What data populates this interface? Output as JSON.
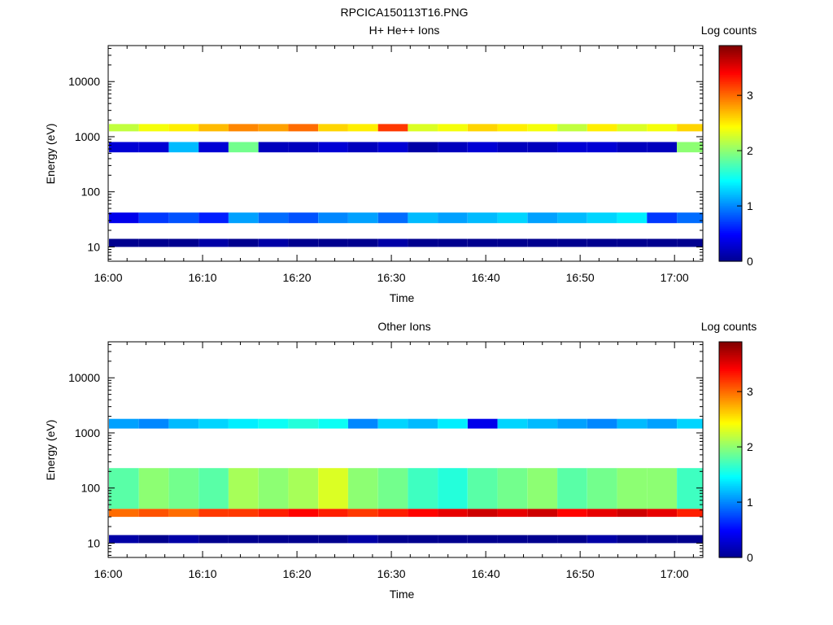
{
  "figure": {
    "title": "RPCICA150113T16.PNG"
  },
  "colors": {
    "colormap": [
      "#00008f",
      "#0000ff",
      "#0080ff",
      "#00ffff",
      "#80ff80",
      "#ffff00",
      "#ff8000",
      "#ff0000",
      "#800000"
    ]
  },
  "chart_data": [
    {
      "type": "heatmap",
      "title": "H+ He++ Ions",
      "xlabel": "Time",
      "ylabel": "Energy (eV)",
      "colorbar_label": "Log counts",
      "x_ticks": [
        "16:00",
        "16:10",
        "16:20",
        "16:30",
        "16:40",
        "16:50",
        "17:00"
      ],
      "y_ticks": [
        "10",
        "100",
        "1000",
        "10000"
      ],
      "colorbar_ticks": [
        "0",
        "1",
        "2",
        "3"
      ],
      "xlim_minutes": [
        0,
        63
      ],
      "ylim_eV": [
        5.5,
        45000
      ],
      "y_scale": "log",
      "zlim": [
        0,
        3.9
      ],
      "time_bins": [
        "16:01:40",
        "16:04:50",
        "16:08:00",
        "16:11:10",
        "16:14:20",
        "16:17:30",
        "16:20:40",
        "16:23:50",
        "16:27:00",
        "16:30:10",
        "16:33:20",
        "16:36:30",
        "16:39:40",
        "16:42:50",
        "16:46:00",
        "16:49:10",
        "16:52:20",
        "16:55:30",
        "16:58:40",
        "17:01:50"
      ],
      "bands": [
        {
          "energy_eV": [
            1250,
            1700
          ],
          "values": [
            2.2,
            2.4,
            2.5,
            2.7,
            2.9,
            2.8,
            3.0,
            2.6,
            2.5,
            3.2,
            2.3,
            2.4,
            2.6,
            2.5,
            2.4,
            2.2,
            2.5,
            2.3,
            2.4,
            2.6
          ]
        },
        {
          "energy_eV": [
            27,
            42
          ],
          "values": [
            0.4,
            0.7,
            0.8,
            0.6,
            1.1,
            0.9,
            0.8,
            1.0,
            1.1,
            0.9,
            1.2,
            1.1,
            1.2,
            1.3,
            1.1,
            1.2,
            1.3,
            1.4,
            0.7,
            0.9
          ]
        },
        {
          "energy_eV": [
            520,
            800
          ],
          "values": [
            0.3,
            0.3,
            1.2,
            0.3,
            1.9,
            0.2,
            0.2,
            0.3,
            0.2,
            0.3,
            0.1,
            0.2,
            0.3,
            0.2,
            0.2,
            0.3,
            0.3,
            0.2,
            0.2,
            2.0
          ]
        },
        {
          "energy_eV": [
            10,
            14
          ],
          "values": [
            0,
            0,
            0,
            0.1,
            0,
            0.1,
            0,
            0,
            0,
            0.1,
            0,
            0,
            0,
            0,
            0,
            0,
            0,
            0,
            0,
            0
          ]
        }
      ]
    },
    {
      "type": "heatmap",
      "title": "Other Ions",
      "xlabel": "Time",
      "ylabel": "Energy (eV)",
      "colorbar_label": "Log counts",
      "x_ticks": [
        "16:00",
        "16:10",
        "16:20",
        "16:30",
        "16:40",
        "16:50",
        "17:00"
      ],
      "y_ticks": [
        "10",
        "100",
        "1000",
        "10000"
      ],
      "colorbar_ticks": [
        "0",
        "1",
        "2",
        "3"
      ],
      "xlim_minutes": [
        0,
        63
      ],
      "ylim_eV": [
        5.5,
        45000
      ],
      "y_scale": "log",
      "zlim": [
        0,
        3.9
      ],
      "time_bins": [
        "16:01:40",
        "16:04:50",
        "16:08:00",
        "16:11:10",
        "16:14:20",
        "16:17:30",
        "16:20:40",
        "16:23:50",
        "16:27:00",
        "16:30:10",
        "16:33:20",
        "16:36:30",
        "16:39:40",
        "16:42:50",
        "16:46:00",
        "16:49:10",
        "16:52:20",
        "16:55:30",
        "16:58:40",
        "17:01:50"
      ],
      "bands": [
        {
          "energy_eV": [
            30,
            42
          ],
          "values": [
            3.0,
            3.1,
            3.0,
            3.2,
            3.2,
            3.3,
            3.4,
            3.3,
            3.2,
            3.3,
            3.4,
            3.5,
            3.6,
            3.5,
            3.6,
            3.4,
            3.5,
            3.6,
            3.5,
            3.3
          ]
        },
        {
          "energy_eV": [
            42,
            230
          ],
          "values": [
            1.8,
            2.0,
            1.9,
            1.8,
            2.1,
            2.0,
            2.1,
            2.3,
            2.0,
            1.9,
            1.7,
            1.6,
            1.8,
            1.9,
            2.0,
            1.8,
            1.9,
            2.0,
            2.0,
            1.7
          ]
        },
        {
          "energy_eV": [
            1200,
            1800
          ],
          "values": [
            1.1,
            1.0,
            1.2,
            1.3,
            1.4,
            1.5,
            1.6,
            1.5,
            1.0,
            1.3,
            1.2,
            1.4,
            0.4,
            1.3,
            1.2,
            1.1,
            1.0,
            1.2,
            1.1,
            1.3
          ]
        },
        {
          "energy_eV": [
            10,
            14
          ],
          "values": [
            0.1,
            0,
            0.1,
            0,
            0,
            0,
            0,
            0,
            0.1,
            0,
            0,
            0,
            0,
            0,
            0,
            0,
            0.1,
            0,
            0,
            0
          ]
        }
      ]
    }
  ]
}
